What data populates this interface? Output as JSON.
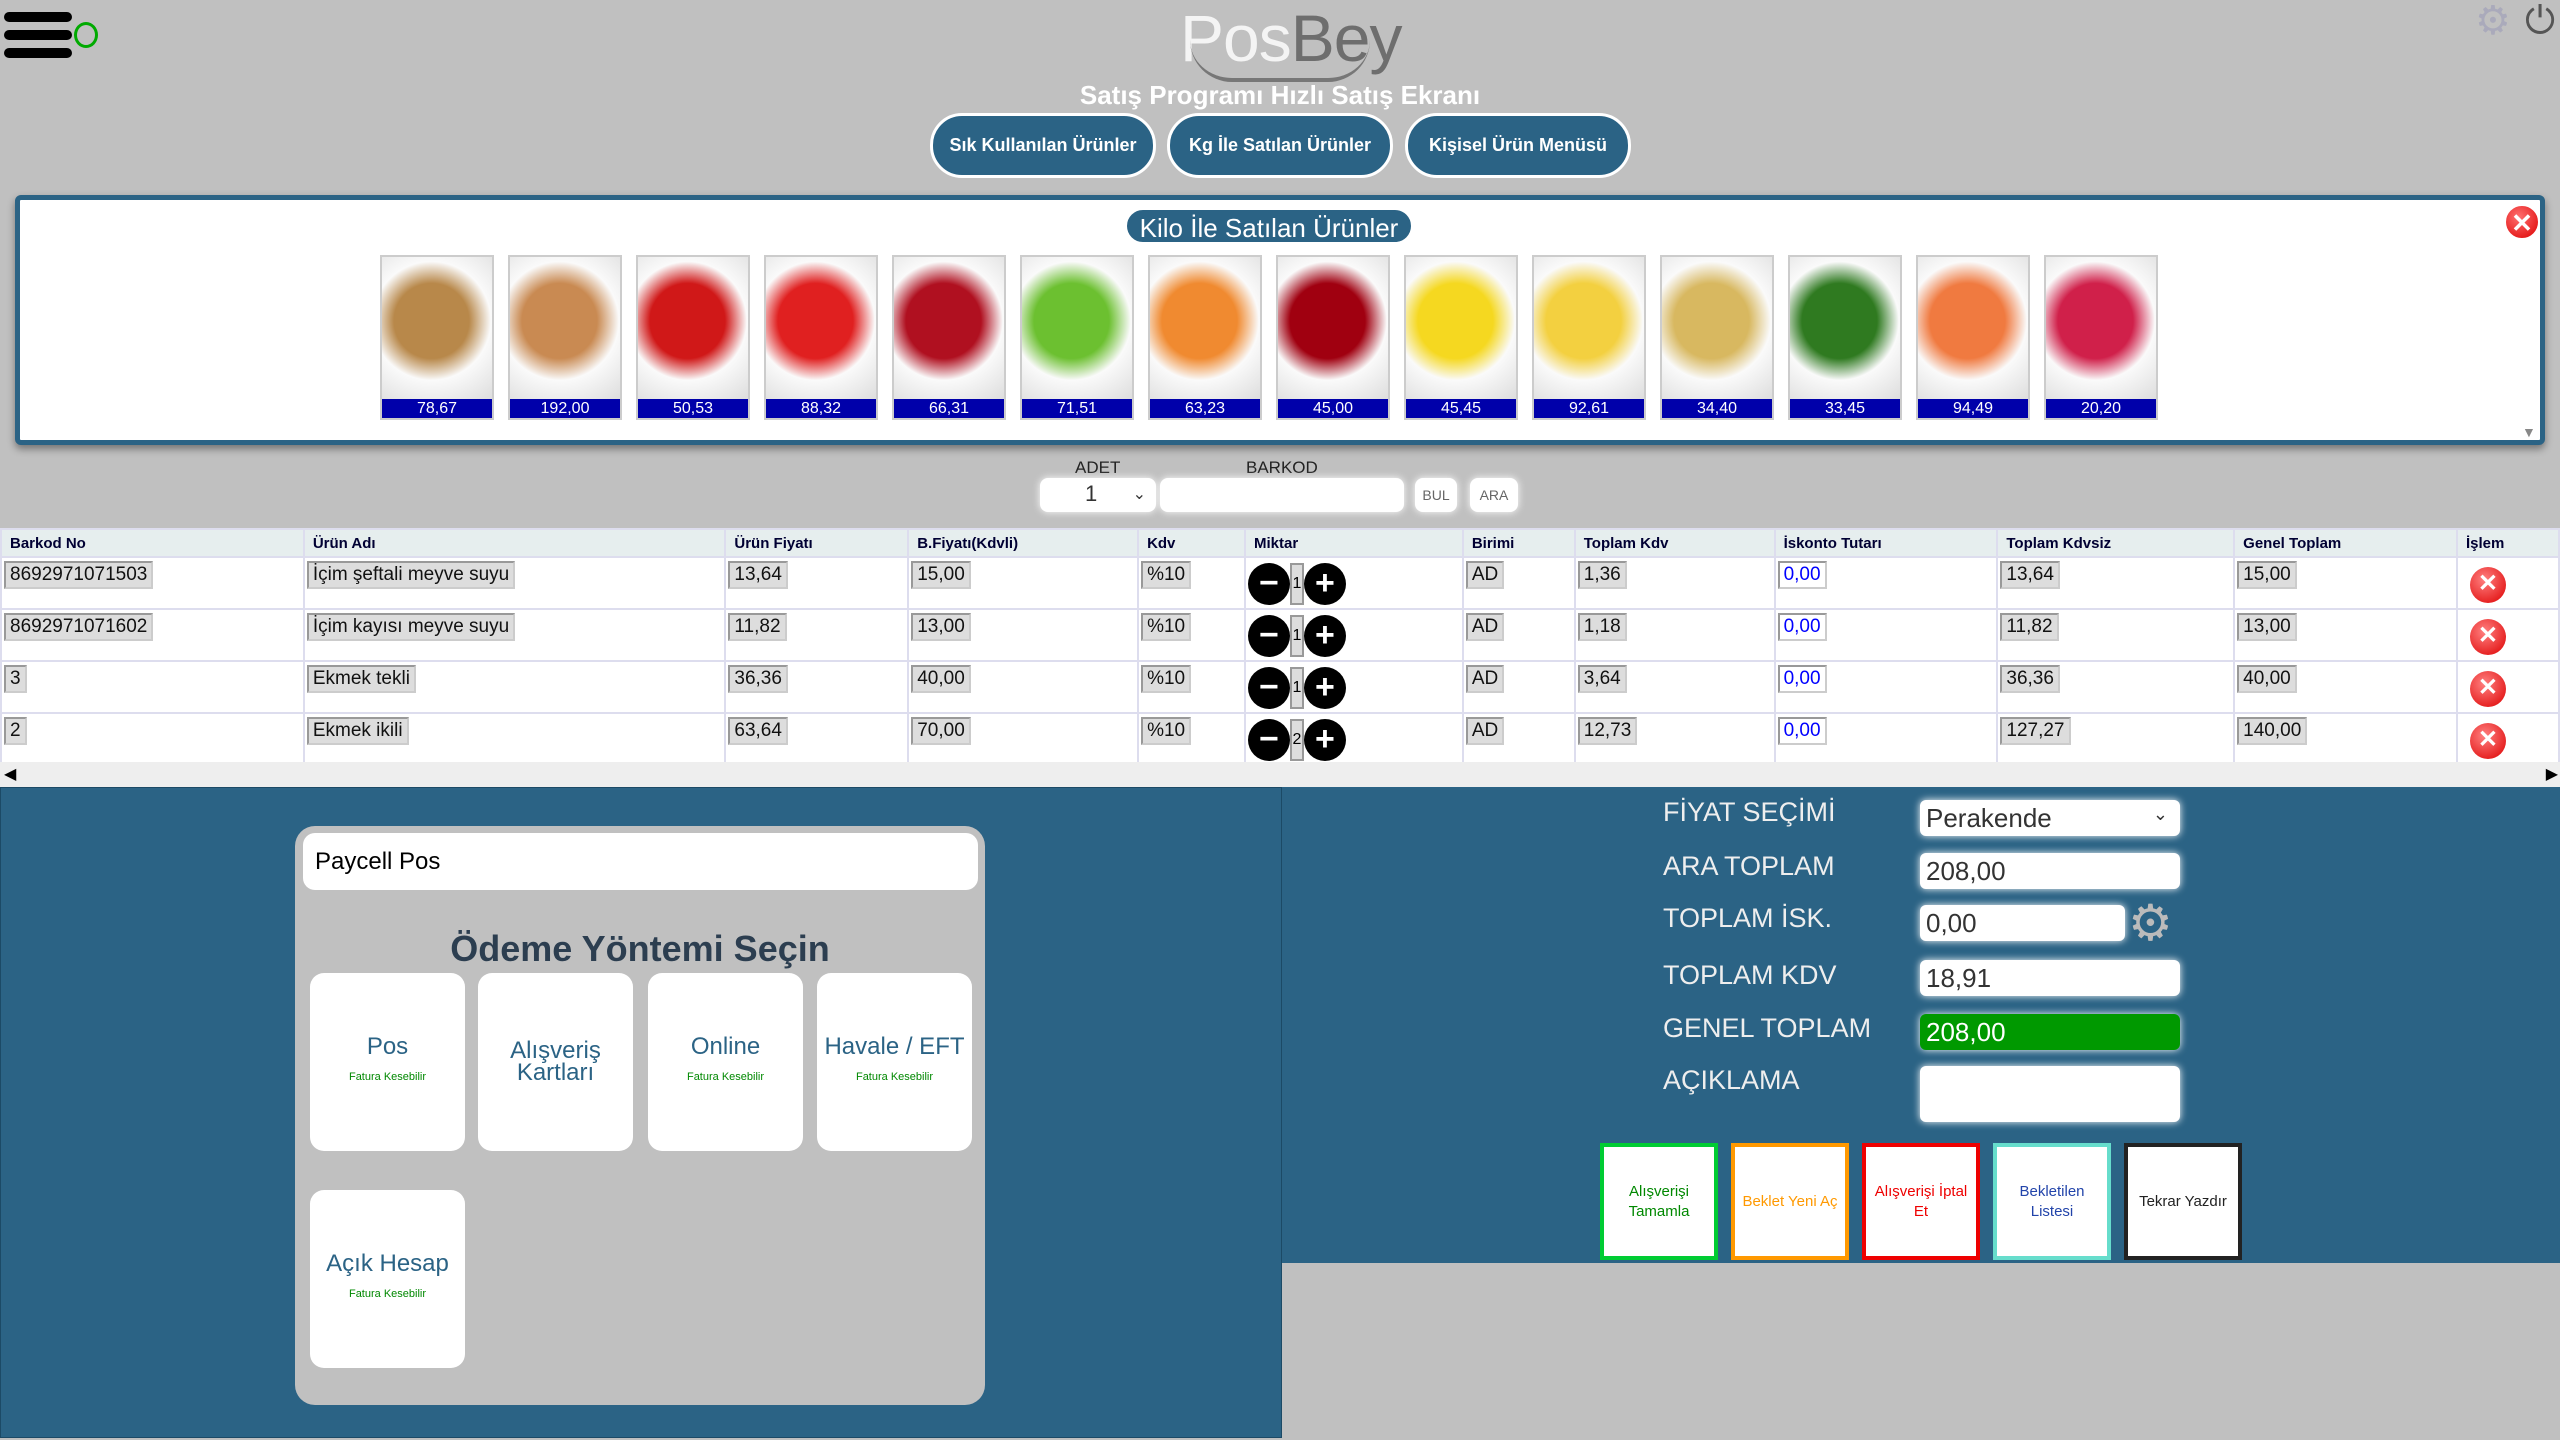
{
  "header": {
    "logo_pos": "Pos",
    "logo_bey": "Bey",
    "subtitle": "Satış Programı Hızlı Satış Ekranı",
    "buttons": [
      "Sık Kullanılan Ürünler",
      "Kg İle Satılan Ürünler",
      "Kişisel Ürün Menüsü"
    ]
  },
  "products_panel": {
    "title": "Kilo İle Satılan Ürünler",
    "items": [
      {
        "icon": "wheat",
        "price": "78,67",
        "color": "#b8884a"
      },
      {
        "icon": "almond",
        "price": "192,00",
        "color": "#c98a52"
      },
      {
        "icon": "strawberry",
        "price": "50,53",
        "color": "#d01818"
      },
      {
        "icon": "tomato",
        "price": "88,32",
        "color": "#e02020"
      },
      {
        "icon": "apple",
        "price": "66,31",
        "color": "#b01020"
      },
      {
        "icon": "green-apple",
        "price": "71,51",
        "color": "#6cc030"
      },
      {
        "icon": "apricot",
        "price": "63,23",
        "color": "#f08a30"
      },
      {
        "icon": "cherry",
        "price": "45,00",
        "color": "#a00010"
      },
      {
        "icon": "lemon",
        "price": "45,45",
        "color": "#f5d820"
      },
      {
        "icon": "banana",
        "price": "92,61",
        "color": "#f3d040"
      },
      {
        "icon": "potato",
        "price": "34,40",
        "color": "#d8b860"
      },
      {
        "icon": "cucumber",
        "price": "33,45",
        "color": "#2f7a20"
      },
      {
        "icon": "peach",
        "price": "94,49",
        "color": "#f07a40"
      },
      {
        "icon": "radish",
        "price": "20,20",
        "color": "#d0204a"
      }
    ]
  },
  "search": {
    "adet_label": "ADET",
    "adet_value": "1",
    "barkod_label": "BARKOD",
    "barkod_value": "",
    "bul": "BUL",
    "ara": "ARA"
  },
  "table": {
    "headers": [
      "Barkod No",
      "Ürün Adı",
      "Ürün Fiyatı",
      "B.Fiyatı(Kdvli)",
      "Kdv",
      "Miktar",
      "Birimi",
      "Toplam Kdv",
      "İskonto Tutarı",
      "Toplam Kdvsiz",
      "Genel Toplam",
      "İşlem"
    ],
    "rows": [
      {
        "barkod": "8692971071503",
        "ad": "İçim şeftali meyve suyu",
        "fiyat": "13,64",
        "bfiyat": "15,00",
        "kdv": "%10",
        "miktar": "1",
        "birim": "AD",
        "tkdv": "1,36",
        "iskonto": "0,00",
        "kdvsiz": "13,64",
        "genel": "15,00"
      },
      {
        "barkod": "8692971071602",
        "ad": "İçim kayısı meyve suyu",
        "fiyat": "11,82",
        "bfiyat": "13,00",
        "kdv": "%10",
        "miktar": "1",
        "birim": "AD",
        "tkdv": "1,18",
        "iskonto": "0,00",
        "kdvsiz": "11,82",
        "genel": "13,00"
      },
      {
        "barkod": "3",
        "ad": "Ekmek tekli",
        "fiyat": "36,36",
        "bfiyat": "40,00",
        "kdv": "%10",
        "miktar": "1",
        "birim": "AD",
        "tkdv": "3,64",
        "iskonto": "0,00",
        "kdvsiz": "36,36",
        "genel": "40,00"
      },
      {
        "barkod": "2",
        "ad": "Ekmek ikili",
        "fiyat": "63,64",
        "bfiyat": "70,00",
        "kdv": "%10",
        "miktar": "2",
        "birim": "AD",
        "tkdv": "12,73",
        "iskonto": "0,00",
        "kdvsiz": "127,27",
        "genel": "140,00"
      }
    ]
  },
  "payment": {
    "pos_name": "Paycell Pos",
    "title": "Ödeme Yöntemi Seçin",
    "methods": [
      {
        "label": "Pos",
        "note": "Fatura Kesebilir"
      },
      {
        "label": "Alışveriş Kartları",
        "note": ""
      },
      {
        "label": "Online",
        "note": "Fatura Kesebilir"
      },
      {
        "label": "Havale / EFT",
        "note": "Fatura Kesebilir"
      },
      {
        "label": "Açık Hesap",
        "note": "Fatura Kesebilir"
      }
    ]
  },
  "totals": {
    "fiyat_label": "FİYAT SEÇİMİ",
    "fiyat_value": "Perakende",
    "ara_label": "ARA TOPLAM",
    "ara_value": "208,00",
    "isk_label": "TOPLAM İSK.",
    "isk_value": "0,00",
    "kdv_label": "TOPLAM KDV",
    "kdv_value": "18,91",
    "genel_label": "GENEL TOPLAM",
    "genel_value": "208,00",
    "genel_color": "#009900",
    "aciklama_label": "AÇIKLAMA",
    "aciklama_value": ""
  },
  "actions": [
    {
      "label": "Alışverişi Tamamla",
      "color": "#00cc33"
    },
    {
      "label": "Beklet Yeni Aç",
      "color": "#ff9900"
    },
    {
      "label": "Alışverişi İptal Et",
      "color": "#ee0000"
    },
    {
      "label": "Bekletilen Listesi",
      "color": "#66ddcc"
    },
    {
      "label": "Tekrar Yazdır",
      "color": "#222222"
    }
  ]
}
